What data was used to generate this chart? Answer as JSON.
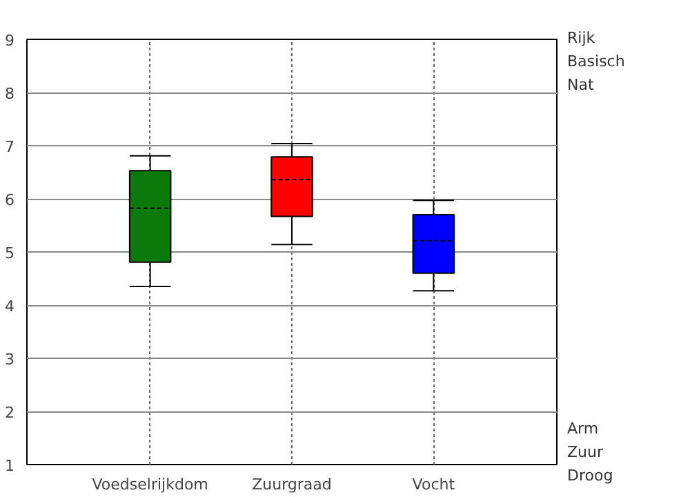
{
  "chart_data": {
    "type": "box",
    "categories": [
      "Voedselrijkdom",
      "Zuurgraad",
      "Vocht"
    ],
    "boxes": [
      {
        "low": 4.35,
        "q1": 4.81,
        "median": 5.82,
        "q3": 6.53,
        "high": 6.81
      },
      {
        "low": 5.14,
        "q1": 5.67,
        "median": 6.36,
        "q3": 6.79,
        "high": 7.04
      },
      {
        "low": 4.27,
        "q1": 4.6,
        "median": 5.21,
        "q3": 5.7,
        "high": 5.97
      }
    ],
    "colors": [
      "#0a7a0a",
      "#ff0000",
      "#0000ff"
    ],
    "ylim": [
      1,
      9
    ],
    "yticks": [
      1,
      2,
      3,
      4,
      5,
      6,
      7,
      8,
      9
    ],
    "annotations": [
      "Rijk",
      "Basisch",
      "Nat",
      "Arm",
      "Zuur",
      "Droog"
    ],
    "grid": true
  }
}
